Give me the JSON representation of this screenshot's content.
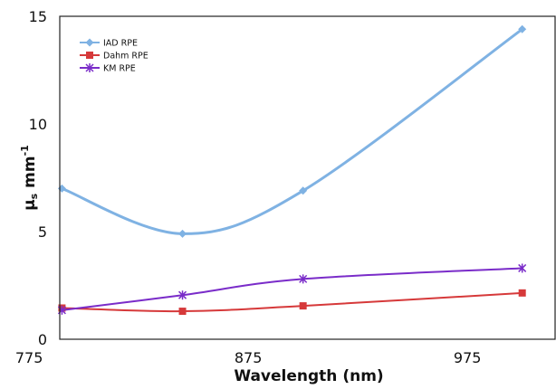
{
  "chart_data": {
    "type": "line",
    "title": "",
    "xlabel": "Wavelength (nm)",
    "ylabel": {
      "base": "μ",
      "subscript": "s",
      "unit": " mm",
      "superscript": "-1"
    },
    "xlim": [
      775,
      1025
    ],
    "ylim": [
      0,
      15
    ],
    "xticks": [
      775,
      875,
      975
    ],
    "yticks": [
      0,
      5,
      10,
      15
    ],
    "grid": false,
    "legend_position": "top-left",
    "x": [
      790,
      845,
      900,
      1000
    ],
    "series": [
      {
        "name": "IAD RPE",
        "values": [
          7.0,
          4.9,
          6.9,
          14.4
        ],
        "color": "#7fb2e3",
        "marker": "diamond"
      },
      {
        "name": "Dahm RPE",
        "values": [
          1.45,
          1.3,
          1.55,
          2.15
        ],
        "color": "#d6393a",
        "marker": "square"
      },
      {
        "name": "KM RPE",
        "values": [
          1.35,
          2.05,
          2.8,
          3.3
        ],
        "color": "#7a2cc9",
        "marker": "star"
      }
    ]
  }
}
